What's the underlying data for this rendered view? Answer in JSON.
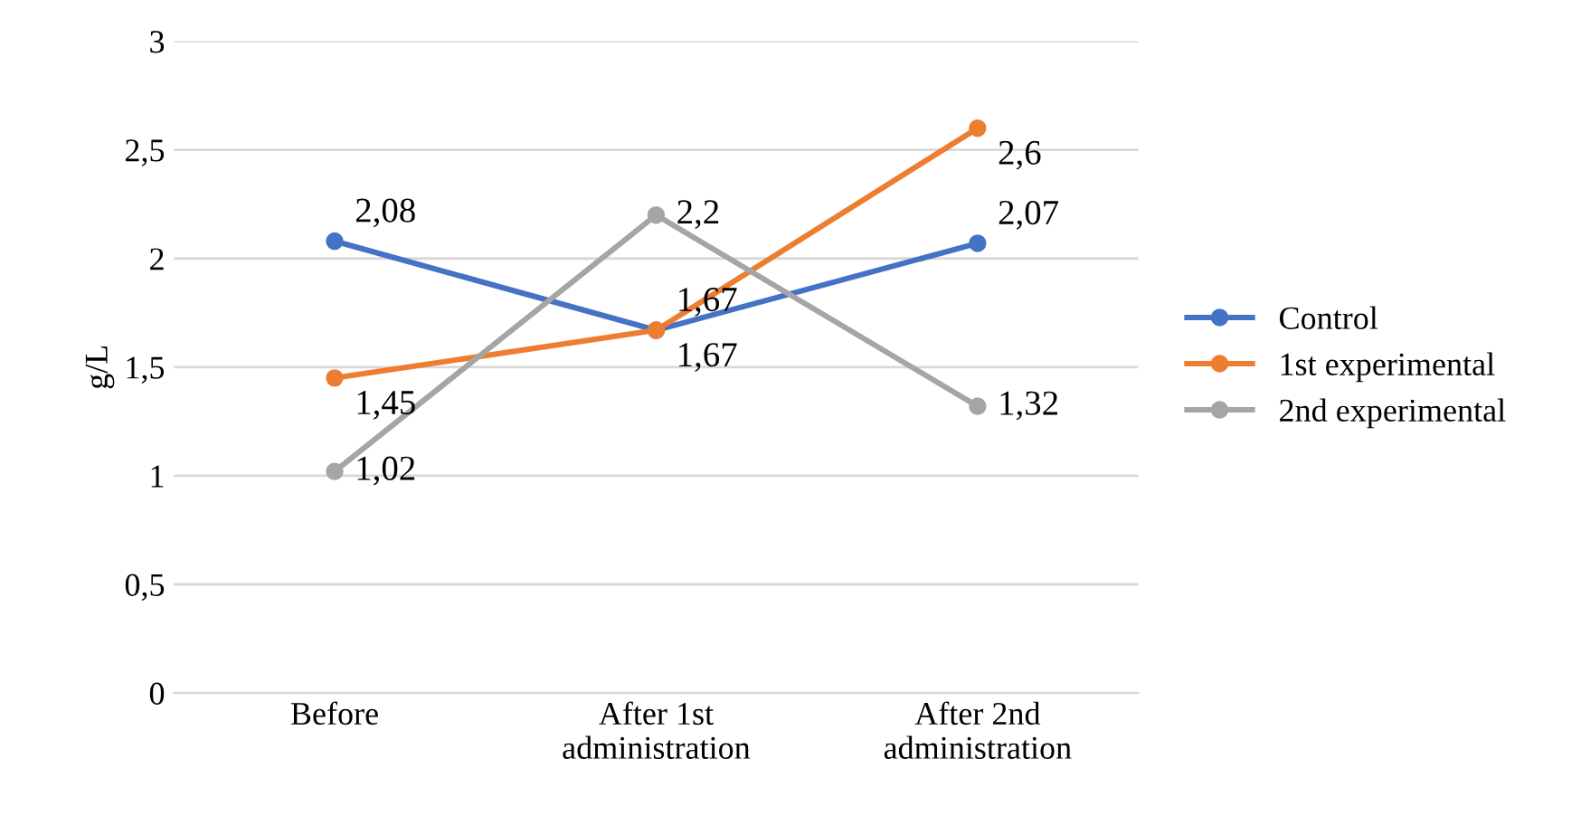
{
  "chart_data": {
    "type": "line",
    "ylabel": "g/L",
    "categories": [
      "Before",
      "After 1st\nadministration",
      "After 2nd\nadministration"
    ],
    "series": [
      {
        "name": "Control",
        "color": "#4472c4",
        "values": [
          2.08,
          1.67,
          2.07
        ],
        "value_labels": [
          "2,08",
          "1,67",
          "2,07"
        ]
      },
      {
        "name": "1st experimental",
        "color": "#ed7d31",
        "values": [
          1.45,
          1.67,
          2.6
        ],
        "value_labels": [
          "1,45",
          "1,67",
          "2,6"
        ]
      },
      {
        "name": "2nd experimental",
        "color": "#a5a5a5",
        "values": [
          1.02,
          2.2,
          1.32
        ],
        "value_labels": [
          "1,02",
          "2,2",
          "1,32"
        ]
      }
    ],
    "ylim": [
      0,
      3
    ],
    "yticks": [
      0,
      {
        "value": 0.5,
        "label": "0,5"
      },
      1,
      {
        "value": 1.5,
        "label": "1,5"
      },
      2,
      {
        "value": 2.5,
        "label": "2,5"
      },
      3
    ],
    "grid": "y",
    "legend": "right",
    "marker": "circle",
    "line_style": "solid"
  }
}
